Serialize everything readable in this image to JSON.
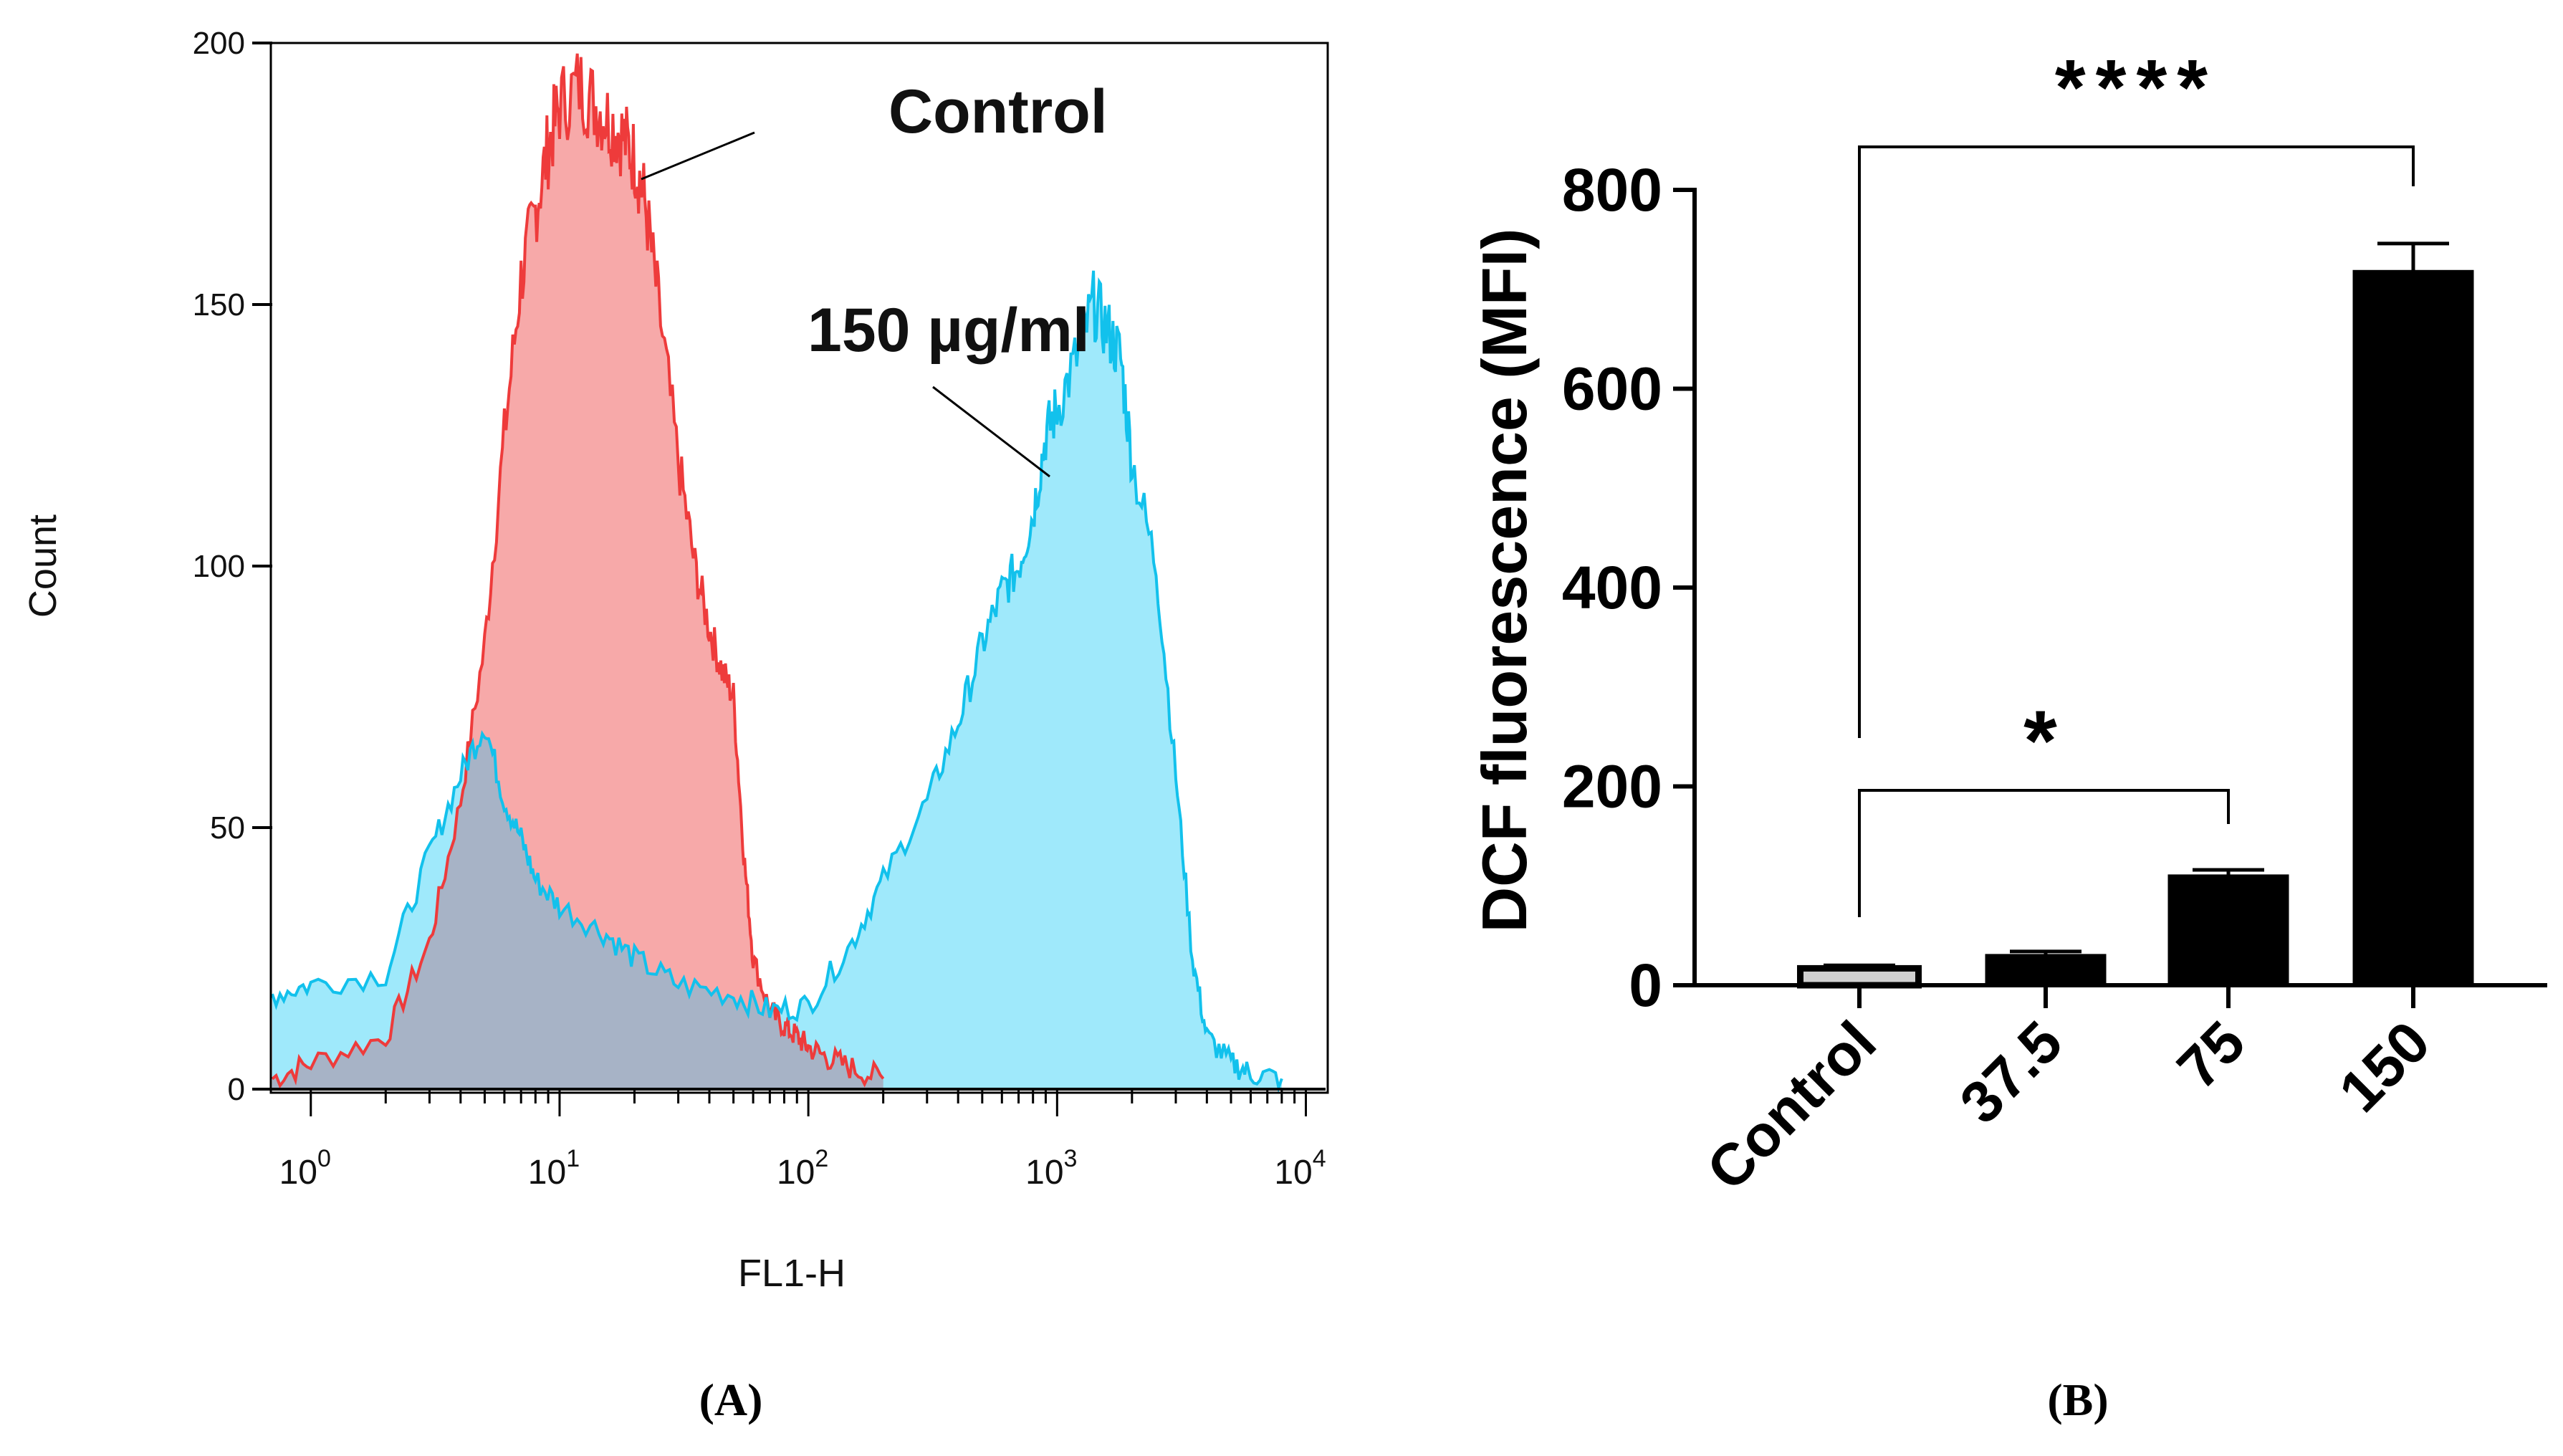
{
  "colors": {
    "control_line": "#ee3b3b",
    "control_fill": "#f7a9a9",
    "treated_line": "#12c1ec",
    "treated_fill": "#9fe9fb",
    "overlap_fill": "#a7b3c6",
    "bar_black": "#000000",
    "bar_control_fill": "#d0d0d0"
  },
  "chart_data": [
    {
      "id": "A",
      "type": "area",
      "panel_label": "(A)",
      "xlabel": "FL1-H",
      "ylabel": "Count",
      "xscale": "log",
      "xlim": [
        0.7,
        12000
      ],
      "ylim": [
        0,
        200
      ],
      "yticks": [
        "0",
        "50",
        "100",
        "150",
        "200"
      ],
      "xticks": [
        {
          "base": "10",
          "exp": "0"
        },
        {
          "base": "10",
          "exp": "1"
        },
        {
          "base": "10",
          "exp": "2"
        },
        {
          "base": "10",
          "exp": "3"
        },
        {
          "base": "10",
          "exp": "4"
        }
      ],
      "annotations": [
        "Control",
        "150 µg/ml"
      ],
      "series": [
        {
          "name": "Control",
          "x": [
            0.7,
            1,
            2,
            3,
            4,
            5,
            6,
            7,
            8,
            9,
            10,
            12,
            14,
            16,
            18,
            20,
            22,
            25,
            30,
            35,
            40,
            45,
            50,
            55,
            60,
            70,
            80,
            90,
            100,
            120,
            150,
            200
          ],
          "y": [
            2,
            5,
            10,
            28,
            55,
            85,
            125,
            155,
            168,
            180,
            188,
            192,
            188,
            185,
            182,
            178,
            170,
            150,
            120,
            100,
            88,
            80,
            75,
            45,
            25,
            15,
            12,
            10,
            8,
            6,
            4,
            2
          ]
        },
        {
          "name": "150 µg/ml",
          "x": [
            0.7,
            1,
            2,
            3,
            4,
            5,
            6,
            7,
            8,
            10,
            15,
            20,
            30,
            50,
            70,
            100,
            150,
            200,
            300,
            400,
            500,
            600,
            700,
            800,
            900,
            1000,
            1200,
            1400,
            1600,
            1800,
            2000,
            2500,
            3000,
            3500,
            4000,
            5000,
            6000,
            8000
          ],
          "y": [
            18,
            20,
            22,
            45,
            60,
            70,
            55,
            48,
            40,
            35,
            30,
            25,
            20,
            18,
            15,
            16,
            28,
            40,
            55,
            70,
            85,
            95,
            100,
            110,
            125,
            130,
            140,
            150,
            145,
            140,
            120,
            100,
            60,
            25,
            10,
            5,
            3,
            2
          ]
        }
      ]
    },
    {
      "id": "B",
      "type": "bar",
      "panel_label": "(B)",
      "ylabel": "DCF fluorescence (MFI)",
      "categories": [
        "Control",
        "37.5",
        "75",
        "150"
      ],
      "values": [
        17,
        30,
        110,
        718
      ],
      "errors": [
        3,
        4,
        6,
        28
      ],
      "ylim": [
        0,
        800
      ],
      "yticks": [
        "0",
        "200",
        "400",
        "600",
        "800"
      ],
      "significance": [
        {
          "from": "Control",
          "to": "150",
          "label": "****"
        },
        {
          "from": "Control",
          "to": "75",
          "label": "*"
        }
      ]
    }
  ]
}
